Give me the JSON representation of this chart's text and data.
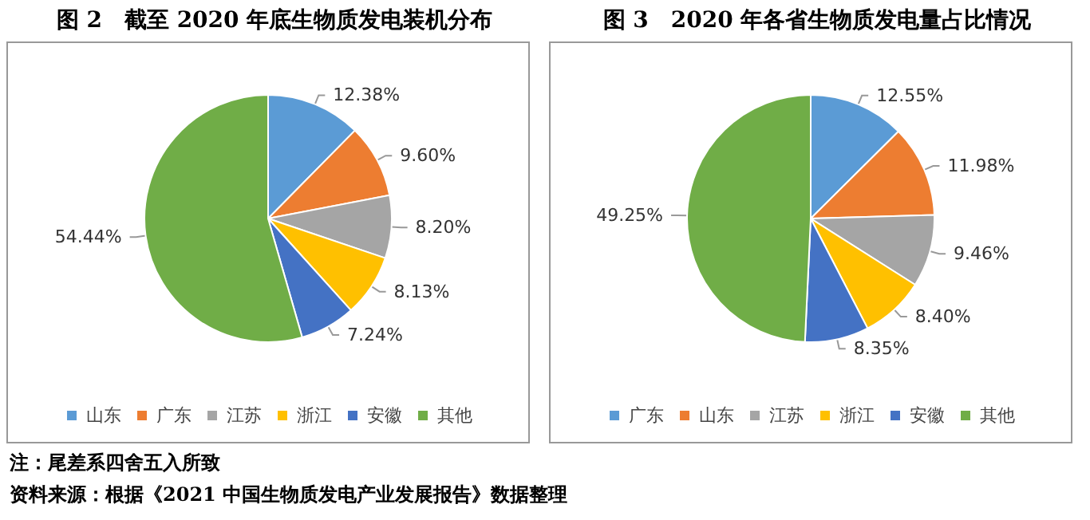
{
  "chart_data": [
    {
      "type": "pie",
      "title": "图 2　截至 2020 年底生物质发电装机分布",
      "categories": [
        "山东",
        "广东",
        "江苏",
        "浙江",
        "安徽",
        "其他"
      ],
      "values": [
        12.38,
        9.6,
        8.2,
        8.13,
        7.24,
        54.44
      ],
      "value_labels": [
        "12.38%",
        "9.60%",
        "8.20%",
        "8.13%",
        "7.24%",
        "54.44%"
      ],
      "colors": [
        "#5b9bd5",
        "#ed7d31",
        "#a5a5a5",
        "#ffc000",
        "#4472c4",
        "#70ad47"
      ],
      "legend": "bottom",
      "annotations": [
        "注：尾差系四舍五入所致",
        "资料来源：根据《2021 中国生物质发电产业发展报告》数据整理"
      ]
    },
    {
      "type": "pie",
      "title": "图 3　2020 年各省生物质发电量占比情况",
      "categories": [
        "广东",
        "山东",
        "江苏",
        "浙江",
        "安徽",
        "其他"
      ],
      "values": [
        12.55,
        11.98,
        9.46,
        8.4,
        8.35,
        49.25
      ],
      "value_labels": [
        "12.55%",
        "11.98%",
        "9.46%",
        "8.40%",
        "8.35%",
        "49.25%"
      ],
      "colors": [
        "#5b9bd5",
        "#ed7d31",
        "#a5a5a5",
        "#ffc000",
        "#4472c4",
        "#70ad47"
      ],
      "legend": "bottom"
    }
  ]
}
